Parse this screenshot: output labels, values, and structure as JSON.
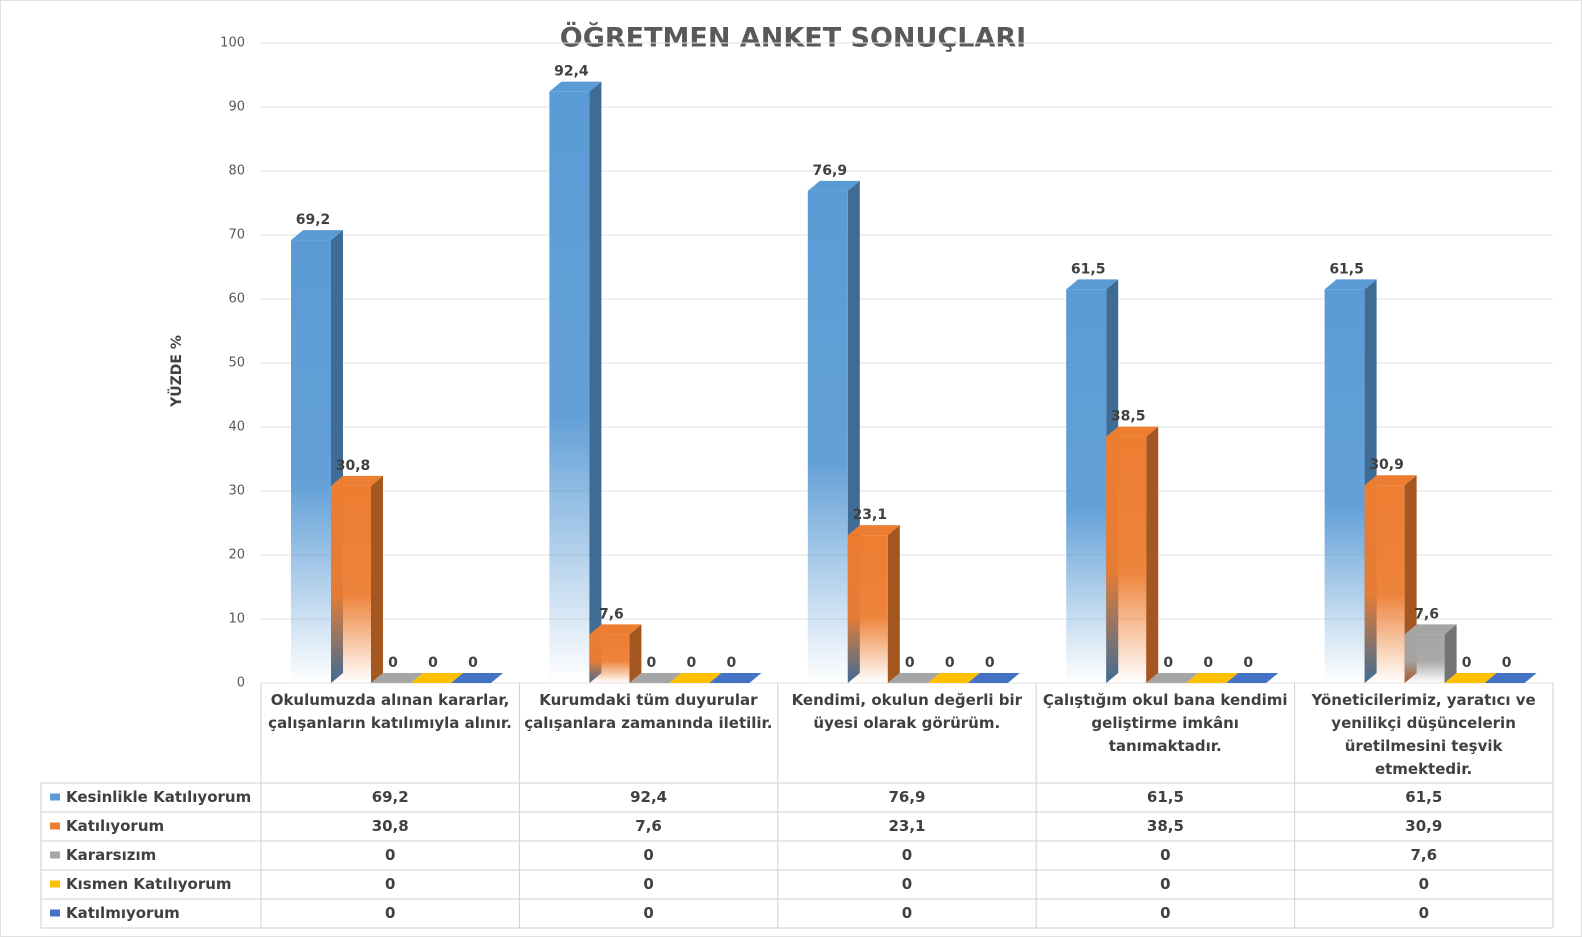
{
  "chart_data": {
    "type": "bar",
    "title": "ÖĞRETMEN ANKET SONUÇLARI",
    "y_label": "YÜZDE %",
    "categories": [
      "Okulumuzda alınan kararlar, çalışanların katılımıyla alınır.",
      "Kurumdaki tüm duyurular çalışanlara zamanında iletilir.",
      "Kendimi, okulun değerli bir üyesi olarak görürüm.",
      "Çalıştığım okul bana kendimi geliştirme imkânı tanımaktadır.",
      "Yöneticilerimiz, yaratıcı ve yenilikçi düşüncelerin üretilmesini teşvik etmektedir."
    ],
    "series": [
      {
        "name": "Kesinlikle Katılıyorum",
        "color": "#5b9bd5",
        "values": [
          69.2,
          92.4,
          76.9,
          61.5,
          61.5
        ],
        "value_labels": [
          "69,2",
          "92,4",
          "76,9",
          "61,5",
          "61,5"
        ]
      },
      {
        "name": "Katılıyorum",
        "color": "#ed7d31",
        "values": [
          30.8,
          7.6,
          23.1,
          38.5,
          30.9
        ],
        "value_labels": [
          "30,8",
          "7,6",
          "23,1",
          "38,5",
          "30,9"
        ]
      },
      {
        "name": "Kararsızım",
        "color": "#a5a5a5",
        "values": [
          0,
          0,
          0,
          0,
          7.6
        ],
        "value_labels": [
          "0",
          "0",
          "0",
          "0",
          "7,6"
        ]
      },
      {
        "name": "Kısmen Katılıyorum",
        "color": "#ffc000",
        "values": [
          0,
          0,
          0,
          0,
          0
        ],
        "value_labels": [
          "0",
          "0",
          "0",
          "0",
          "0"
        ]
      },
      {
        "name": "Katılmıyorum",
        "color": "#4472c4",
        "values": [
          0,
          0,
          0,
          0,
          0
        ],
        "value_labels": [
          "0",
          "0",
          "0",
          "0",
          "0"
        ]
      }
    ],
    "ylim": [
      0,
      100
    ],
    "yticks": [
      0,
      10,
      20,
      30,
      40,
      50,
      60,
      70,
      80,
      90,
      100
    ],
    "grid": true,
    "data_table": true
  }
}
